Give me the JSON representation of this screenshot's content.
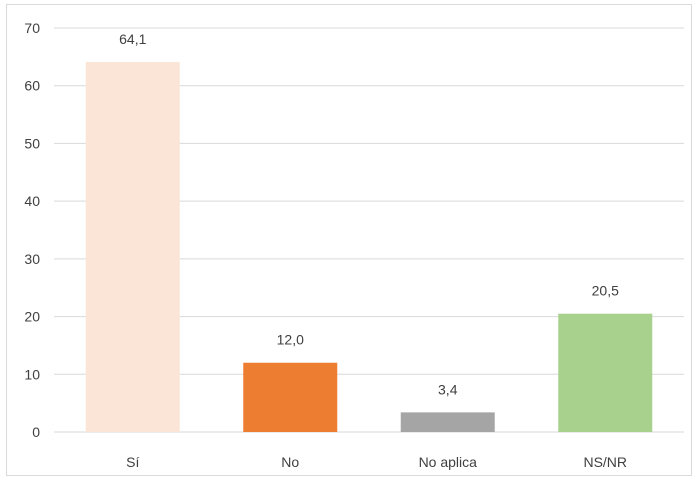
{
  "chart_data": {
    "type": "bar",
    "title": "",
    "xlabel": "",
    "ylabel": "",
    "categories": [
      "Sí",
      "No",
      "No aplica",
      "NS/NR"
    ],
    "values": [
      64.1,
      12.0,
      3.4,
      20.5
    ],
    "value_labels": [
      "64,1",
      "12,0",
      "3,4",
      "20,5"
    ],
    "colors": [
      "#fbe5d6",
      "#ed7d31",
      "#a5a5a5",
      "#a9d18e"
    ],
    "ylim": [
      0,
      70
    ],
    "yticks": [
      0,
      10,
      20,
      30,
      40,
      50,
      60,
      70
    ],
    "grid": true,
    "legend": "none"
  }
}
